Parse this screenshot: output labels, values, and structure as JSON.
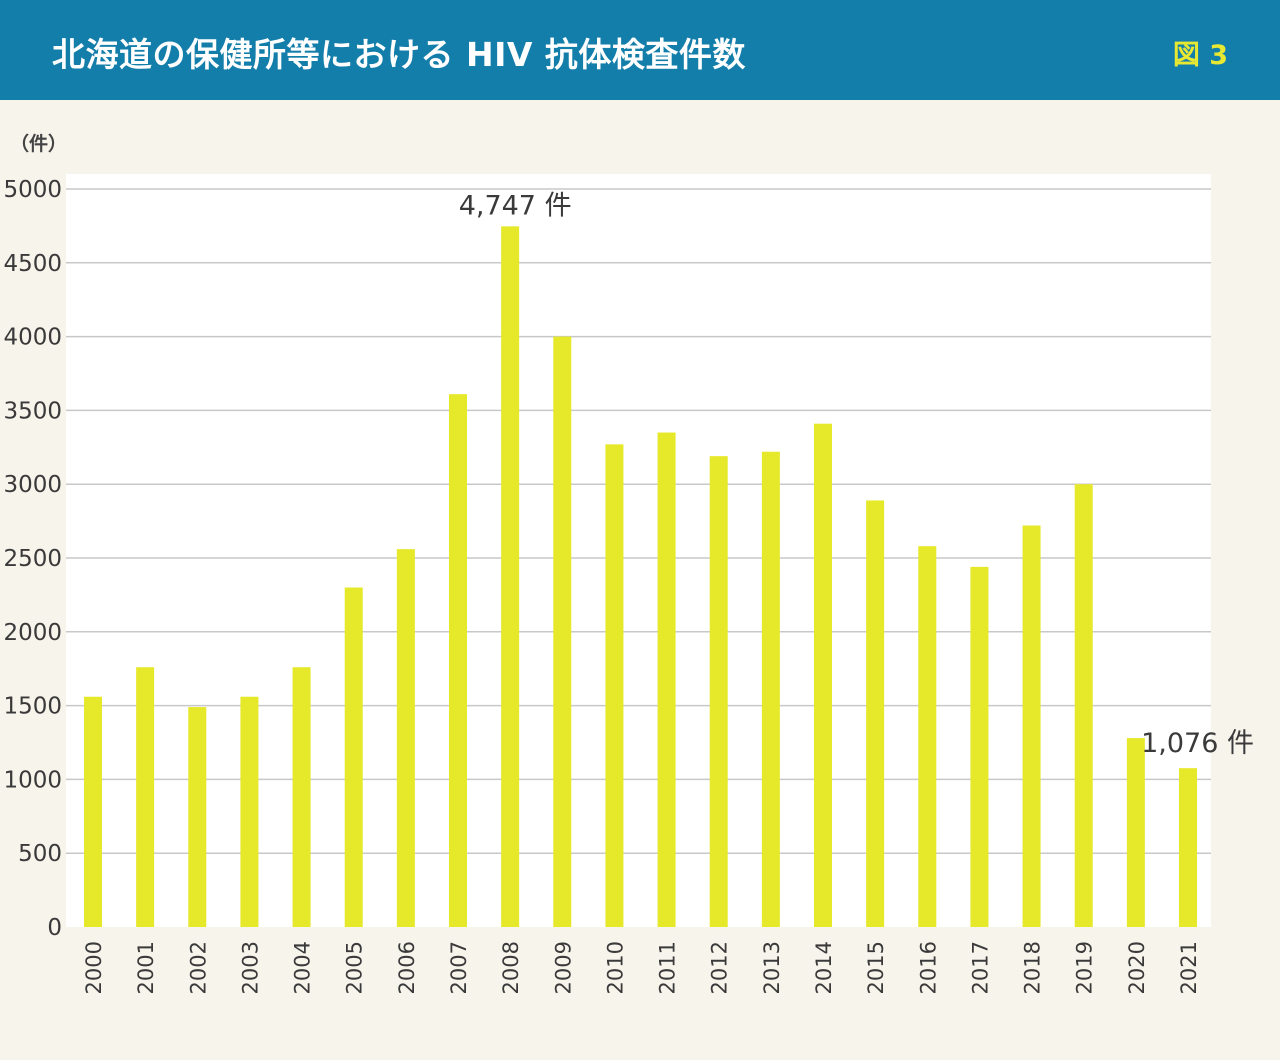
{
  "header": {
    "title": "北海道の保健所等における HIV 抗体検査件数",
    "figure_label": "図 3"
  },
  "colors": {
    "header_bg": "#147eab",
    "bar": "#e6e82a",
    "figure_label": "#e6e832",
    "page_bg": "#f7f4ec",
    "plot_bg": "#ffffff",
    "grid": "#c8c8c8"
  },
  "chart_data": {
    "type": "bar",
    "ylabel": "（件）",
    "ylim": [
      0,
      5000
    ],
    "yticks": [
      0,
      500,
      1000,
      1500,
      2000,
      2500,
      3000,
      3500,
      4000,
      4500,
      5000
    ],
    "grid": true,
    "categories": [
      "2000",
      "2001",
      "2002",
      "2003",
      "2004",
      "2005",
      "2006",
      "2007",
      "2008",
      "2009",
      "2010",
      "2011",
      "2012",
      "2013",
      "2014",
      "2015",
      "2016",
      "2017",
      "2018",
      "2019",
      "2020",
      "2021"
    ],
    "values": [
      1560,
      1760,
      1490,
      1560,
      1760,
      2300,
      2560,
      3610,
      4747,
      4000,
      3270,
      3350,
      3190,
      3220,
      3410,
      2890,
      2580,
      2440,
      2720,
      3000,
      1280,
      1076
    ],
    "annotations": [
      {
        "category": "2008",
        "text": "4,747 件"
      },
      {
        "category": "2021",
        "text": "1,076 件"
      }
    ]
  }
}
